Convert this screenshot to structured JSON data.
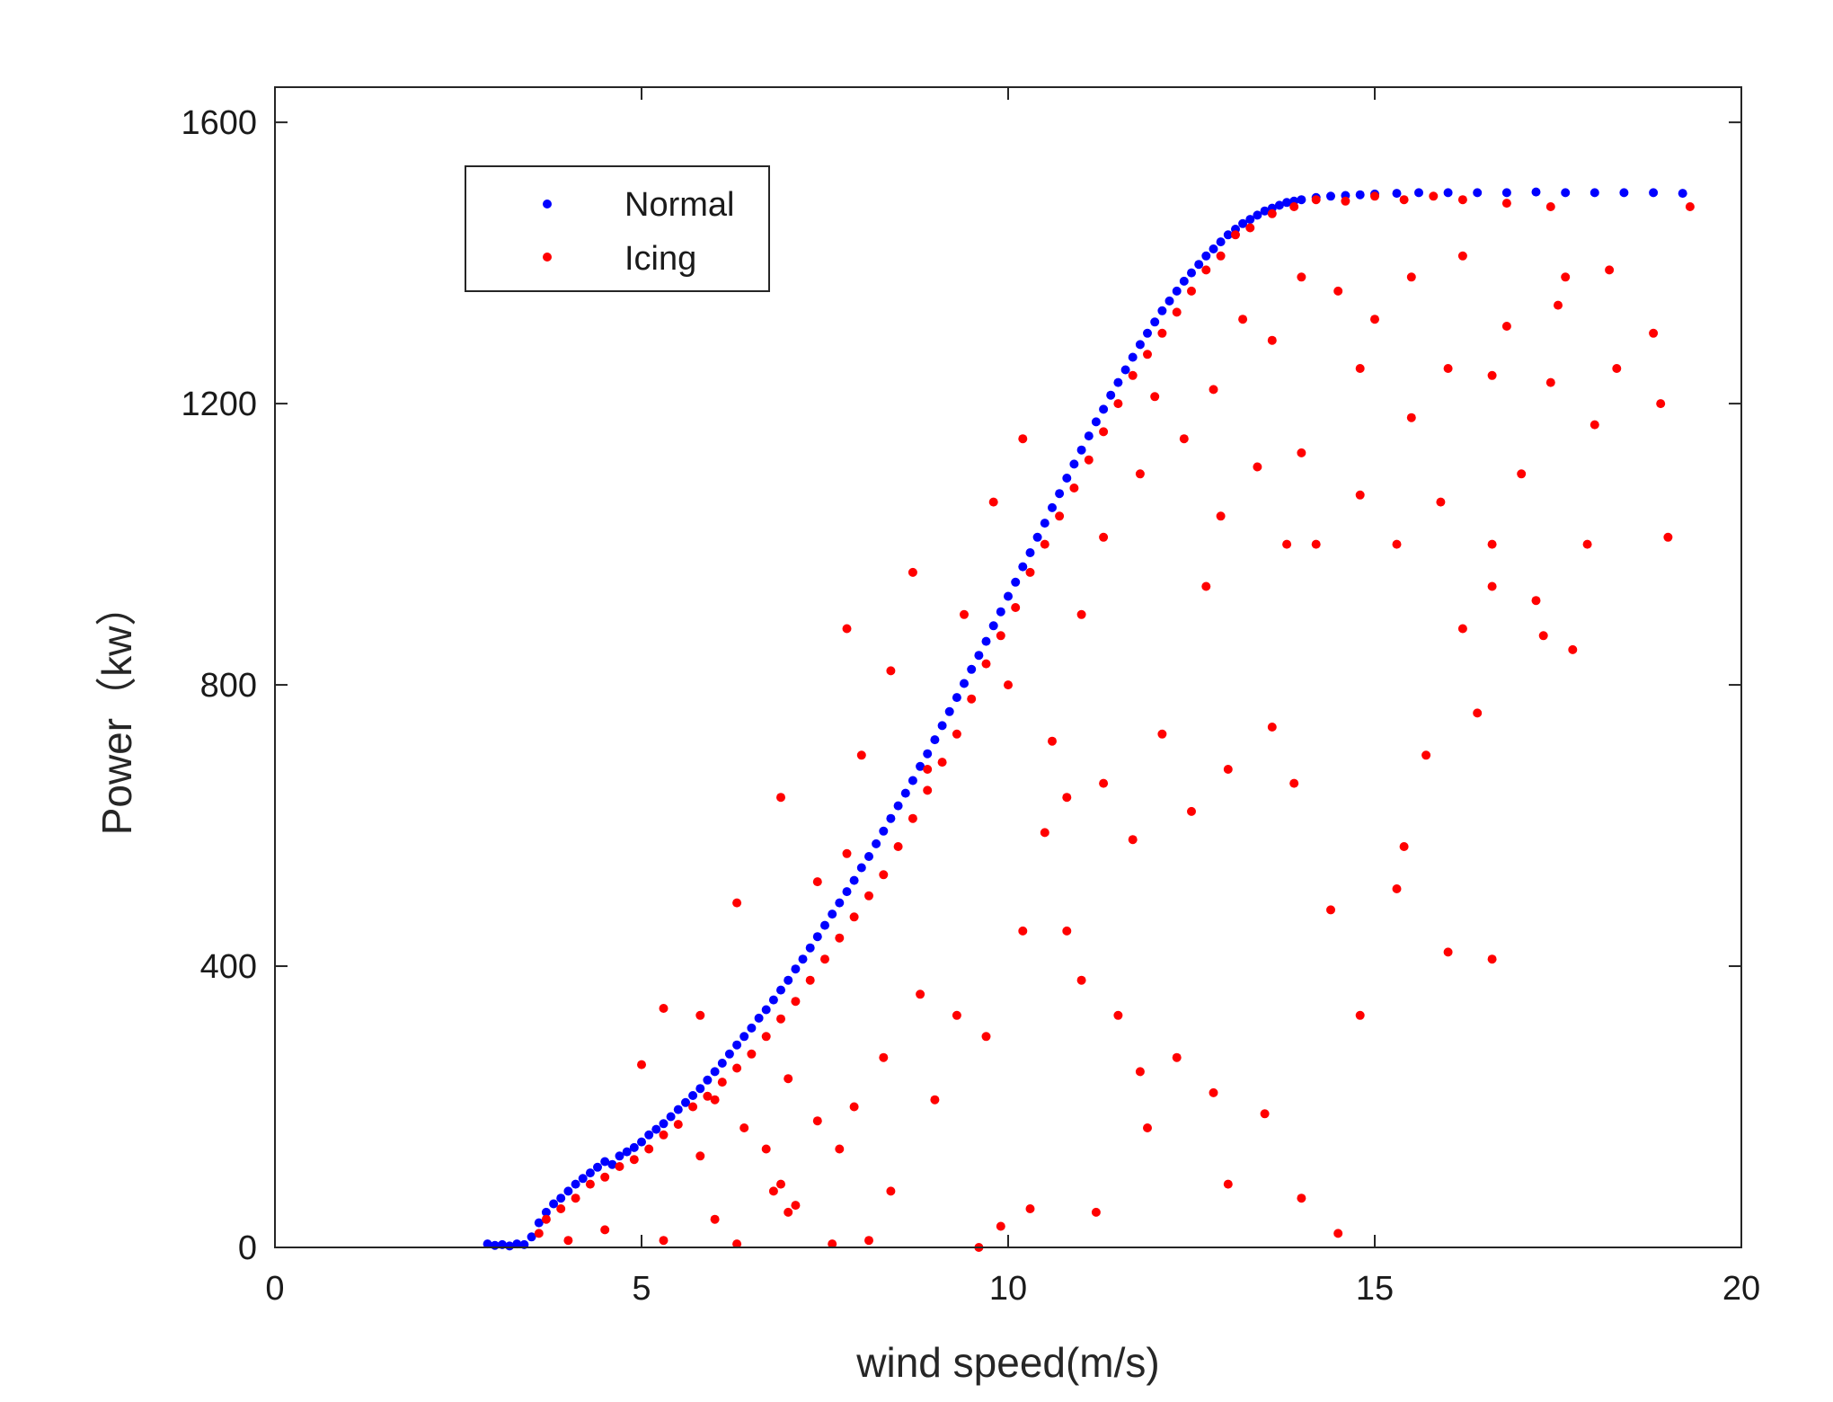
{
  "chart_data": {
    "type": "scatter",
    "title": "",
    "xlabel": "wind speed(m/s)",
    "ylabel": "Power（kw）",
    "xlim": [
      0,
      20
    ],
    "ylim": [
      0,
      1650
    ],
    "xticks": [
      0,
      5,
      10,
      15,
      20
    ],
    "xtick_labels": [
      "0",
      "5",
      "10",
      "15",
      "20"
    ],
    "yticks": [
      0,
      400,
      800,
      1200,
      1600
    ],
    "ytick_labels": [
      "0",
      "400",
      "800",
      "1200",
      "1600"
    ],
    "grid": false,
    "legend_position": "top-left",
    "series": [
      {
        "name": "Normal",
        "color": "#0000ff",
        "points": [
          [
            2.9,
            5
          ],
          [
            3.0,
            3
          ],
          [
            3.1,
            4
          ],
          [
            3.2,
            2
          ],
          [
            3.3,
            5
          ],
          [
            3.4,
            4
          ],
          [
            3.5,
            15
          ],
          [
            3.6,
            35
          ],
          [
            3.7,
            50
          ],
          [
            3.8,
            62
          ],
          [
            3.9,
            70
          ],
          [
            4.0,
            80
          ],
          [
            4.1,
            90
          ],
          [
            4.2,
            98
          ],
          [
            4.3,
            106
          ],
          [
            4.4,
            114
          ],
          [
            4.5,
            122
          ],
          [
            4.6,
            118
          ],
          [
            4.7,
            130
          ],
          [
            4.8,
            136
          ],
          [
            4.9,
            142
          ],
          [
            5.0,
            150
          ],
          [
            5.1,
            160
          ],
          [
            5.2,
            168
          ],
          [
            5.3,
            176
          ],
          [
            5.4,
            186
          ],
          [
            5.5,
            196
          ],
          [
            5.6,
            206
          ],
          [
            5.7,
            216
          ],
          [
            5.8,
            226
          ],
          [
            5.9,
            238
          ],
          [
            6.0,
            250
          ],
          [
            6.1,
            262
          ],
          [
            6.2,
            275
          ],
          [
            6.3,
            288
          ],
          [
            6.4,
            300
          ],
          [
            6.5,
            312
          ],
          [
            6.6,
            326
          ],
          [
            6.7,
            338
          ],
          [
            6.8,
            352
          ],
          [
            6.9,
            366
          ],
          [
            7.0,
            380
          ],
          [
            7.1,
            396
          ],
          [
            7.2,
            410
          ],
          [
            7.3,
            426
          ],
          [
            7.4,
            442
          ],
          [
            7.5,
            458
          ],
          [
            7.6,
            474
          ],
          [
            7.7,
            490
          ],
          [
            7.8,
            506
          ],
          [
            7.9,
            522
          ],
          [
            8.0,
            540
          ],
          [
            8.1,
            556
          ],
          [
            8.2,
            574
          ],
          [
            8.3,
            592
          ],
          [
            8.4,
            610
          ],
          [
            8.5,
            628
          ],
          [
            8.6,
            646
          ],
          [
            8.7,
            664
          ],
          [
            8.8,
            684
          ],
          [
            8.9,
            702
          ],
          [
            9.0,
            722
          ],
          [
            9.1,
            742
          ],
          [
            9.2,
            762
          ],
          [
            9.3,
            782
          ],
          [
            9.4,
            802
          ],
          [
            9.5,
            822
          ],
          [
            9.6,
            842
          ],
          [
            9.7,
            862
          ],
          [
            9.8,
            884
          ],
          [
            9.9,
            904
          ],
          [
            10.0,
            926
          ],
          [
            10.1,
            946
          ],
          [
            10.2,
            968
          ],
          [
            10.3,
            988
          ],
          [
            10.4,
            1010
          ],
          [
            10.5,
            1030
          ],
          [
            10.6,
            1052
          ],
          [
            10.7,
            1072
          ],
          [
            10.8,
            1094
          ],
          [
            10.9,
            1114
          ],
          [
            11.0,
            1134
          ],
          [
            11.1,
            1154
          ],
          [
            11.2,
            1174
          ],
          [
            11.3,
            1192
          ],
          [
            11.4,
            1212
          ],
          [
            11.5,
            1230
          ],
          [
            11.6,
            1248
          ],
          [
            11.7,
            1266
          ],
          [
            11.8,
            1284
          ],
          [
            11.9,
            1300
          ],
          [
            12.0,
            1316
          ],
          [
            12.1,
            1332
          ],
          [
            12.2,
            1346
          ],
          [
            12.3,
            1360
          ],
          [
            12.4,
            1374
          ],
          [
            12.5,
            1386
          ],
          [
            12.6,
            1398
          ],
          [
            12.7,
            1410
          ],
          [
            12.8,
            1420
          ],
          [
            12.9,
            1430
          ],
          [
            13.0,
            1440
          ],
          [
            13.1,
            1448
          ],
          [
            13.2,
            1456
          ],
          [
            13.3,
            1462
          ],
          [
            13.4,
            1468
          ],
          [
            13.5,
            1474
          ],
          [
            13.6,
            1478
          ],
          [
            13.7,
            1482
          ],
          [
            13.8,
            1486
          ],
          [
            13.9,
            1488
          ],
          [
            14.0,
            1490
          ],
          [
            14.2,
            1493
          ],
          [
            14.4,
            1495
          ],
          [
            14.6,
            1496
          ],
          [
            14.8,
            1497
          ],
          [
            15.0,
            1498
          ],
          [
            15.3,
            1499
          ],
          [
            15.6,
            1500
          ],
          [
            16.0,
            1500
          ],
          [
            16.4,
            1500
          ],
          [
            16.8,
            1500
          ],
          [
            17.2,
            1501
          ],
          [
            17.6,
            1500
          ],
          [
            18.0,
            1500
          ],
          [
            18.4,
            1500
          ],
          [
            18.8,
            1500
          ],
          [
            19.2,
            1499
          ]
        ]
      },
      {
        "name": "Icing",
        "color": "#ff0000",
        "points": [
          [
            3.7,
            40
          ],
          [
            3.9,
            55
          ],
          [
            4.1,
            70
          ],
          [
            4.3,
            90
          ],
          [
            4.5,
            100
          ],
          [
            4.7,
            115
          ],
          [
            4.9,
            125
          ],
          [
            5.1,
            140
          ],
          [
            5.3,
            160
          ],
          [
            5.5,
            175
          ],
          [
            5.7,
            200
          ],
          [
            5.9,
            215
          ],
          [
            6.1,
            235
          ],
          [
            6.3,
            255
          ],
          [
            6.5,
            275
          ],
          [
            6.7,
            300
          ],
          [
            6.9,
            325
          ],
          [
            7.1,
            350
          ],
          [
            7.3,
            380
          ],
          [
            7.5,
            410
          ],
          [
            7.7,
            440
          ],
          [
            7.9,
            470
          ],
          [
            8.1,
            500
          ],
          [
            8.3,
            530
          ],
          [
            8.5,
            570
          ],
          [
            8.7,
            610
          ],
          [
            8.9,
            650
          ],
          [
            9.1,
            690
          ],
          [
            9.3,
            730
          ],
          [
            9.5,
            780
          ],
          [
            9.7,
            830
          ],
          [
            9.9,
            870
          ],
          [
            10.1,
            910
          ],
          [
            10.3,
            960
          ],
          [
            10.5,
            1000
          ],
          [
            10.7,
            1040
          ],
          [
            10.9,
            1080
          ],
          [
            11.1,
            1120
          ],
          [
            11.3,
            1160
          ],
          [
            11.5,
            1200
          ],
          [
            11.7,
            1240
          ],
          [
            11.9,
            1270
          ],
          [
            12.1,
            1300
          ],
          [
            12.3,
            1330
          ],
          [
            12.5,
            1360
          ],
          [
            12.7,
            1390
          ],
          [
            12.9,
            1410
          ],
          [
            13.1,
            1440
          ],
          [
            13.3,
            1450
          ],
          [
            13.6,
            1470
          ],
          [
            13.9,
            1480
          ],
          [
            14.2,
            1490
          ],
          [
            14.6,
            1488
          ],
          [
            15.0,
            1495
          ],
          [
            15.4,
            1490
          ],
          [
            15.8,
            1495
          ],
          [
            16.2,
            1490
          ],
          [
            16.8,
            1485
          ],
          [
            17.4,
            1480
          ],
          [
            19.3,
            1480
          ],
          [
            3.6,
            20
          ],
          [
            4.0,
            10
          ],
          [
            4.5,
            25
          ],
          [
            5.3,
            10
          ],
          [
            6.0,
            40
          ],
          [
            6.3,
            5
          ],
          [
            6.8,
            80
          ],
          [
            7.0,
            50
          ],
          [
            7.6,
            5
          ],
          [
            9.6,
            0
          ],
          [
            5.3,
            340
          ],
          [
            5.0,
            260
          ],
          [
            5.8,
            330
          ],
          [
            6.3,
            490
          ],
          [
            6.9,
            640
          ],
          [
            7.4,
            520
          ],
          [
            7.8,
            560
          ],
          [
            8.0,
            700
          ],
          [
            7.8,
            880
          ],
          [
            8.7,
            960
          ],
          [
            8.4,
            820
          ],
          [
            8.9,
            680
          ],
          [
            9.4,
            900
          ],
          [
            9.8,
            1060
          ],
          [
            10.2,
            1150
          ],
          [
            10.0,
            800
          ],
          [
            10.6,
            720
          ],
          [
            11.0,
            900
          ],
          [
            11.3,
            1010
          ],
          [
            11.8,
            1100
          ],
          [
            12.0,
            1210
          ],
          [
            12.4,
            1150
          ],
          [
            12.8,
            1220
          ],
          [
            13.2,
            1320
          ],
          [
            13.6,
            1290
          ],
          [
            14.0,
            1380
          ],
          [
            14.5,
            1360
          ],
          [
            15.0,
            1320
          ],
          [
            15.5,
            1380
          ],
          [
            16.2,
            1410
          ],
          [
            16.8,
            1310
          ],
          [
            17.5,
            1340
          ],
          [
            18.2,
            1390
          ],
          [
            18.8,
            1300
          ],
          [
            18.9,
            1200
          ],
          [
            18.0,
            1170
          ],
          [
            17.0,
            1100
          ],
          [
            16.6,
            1000
          ],
          [
            16.2,
            880
          ],
          [
            17.2,
            920
          ],
          [
            17.7,
            850
          ],
          [
            16.4,
            760
          ],
          [
            15.7,
            700
          ],
          [
            15.4,
            570
          ],
          [
            15.3,
            510
          ],
          [
            16.0,
            420
          ],
          [
            16.6,
            410
          ],
          [
            14.4,
            480
          ],
          [
            13.6,
            740
          ],
          [
            13.9,
            660
          ],
          [
            13.0,
            680
          ],
          [
            12.5,
            620
          ],
          [
            12.1,
            730
          ],
          [
            11.7,
            580
          ],
          [
            11.3,
            660
          ],
          [
            10.8,
            640
          ],
          [
            10.5,
            590
          ],
          [
            10.2,
            450
          ],
          [
            9.7,
            300
          ],
          [
            9.3,
            330
          ],
          [
            8.8,
            360
          ],
          [
            8.3,
            270
          ],
          [
            7.9,
            200
          ],
          [
            7.4,
            180
          ],
          [
            7.0,
            240
          ],
          [
            6.7,
            140
          ],
          [
            6.4,
            170
          ],
          [
            6.0,
            210
          ],
          [
            5.8,
            130
          ],
          [
            10.8,
            450
          ],
          [
            11.0,
            380
          ],
          [
            11.5,
            330
          ],
          [
            11.8,
            250
          ],
          [
            12.3,
            270
          ],
          [
            12.8,
            220
          ],
          [
            13.0,
            90
          ],
          [
            13.5,
            190
          ],
          [
            14.0,
            70
          ],
          [
            14.8,
            330
          ],
          [
            14.5,
            20
          ],
          [
            11.9,
            170
          ],
          [
            11.2,
            50
          ],
          [
            10.3,
            55
          ],
          [
            9.9,
            30
          ],
          [
            9.0,
            210
          ],
          [
            8.4,
            80
          ],
          [
            8.1,
            10
          ],
          [
            7.7,
            140
          ],
          [
            7.1,
            60
          ],
          [
            6.9,
            90
          ],
          [
            14.2,
            1000
          ],
          [
            14.8,
            1070
          ],
          [
            15.3,
            1000
          ],
          [
            15.9,
            1060
          ],
          [
            17.9,
            1000
          ],
          [
            19.0,
            1010
          ],
          [
            16.6,
            940
          ],
          [
            17.3,
            870
          ],
          [
            15.5,
            1180
          ],
          [
            14.8,
            1250
          ],
          [
            16.0,
            1250
          ],
          [
            16.6,
            1240
          ],
          [
            17.4,
            1230
          ],
          [
            18.3,
            1250
          ],
          [
            13.8,
            1000
          ],
          [
            12.7,
            940
          ],
          [
            12.9,
            1040
          ],
          [
            13.4,
            1110
          ],
          [
            14.0,
            1130
          ],
          [
            17.6,
            1380
          ]
        ]
      }
    ]
  }
}
